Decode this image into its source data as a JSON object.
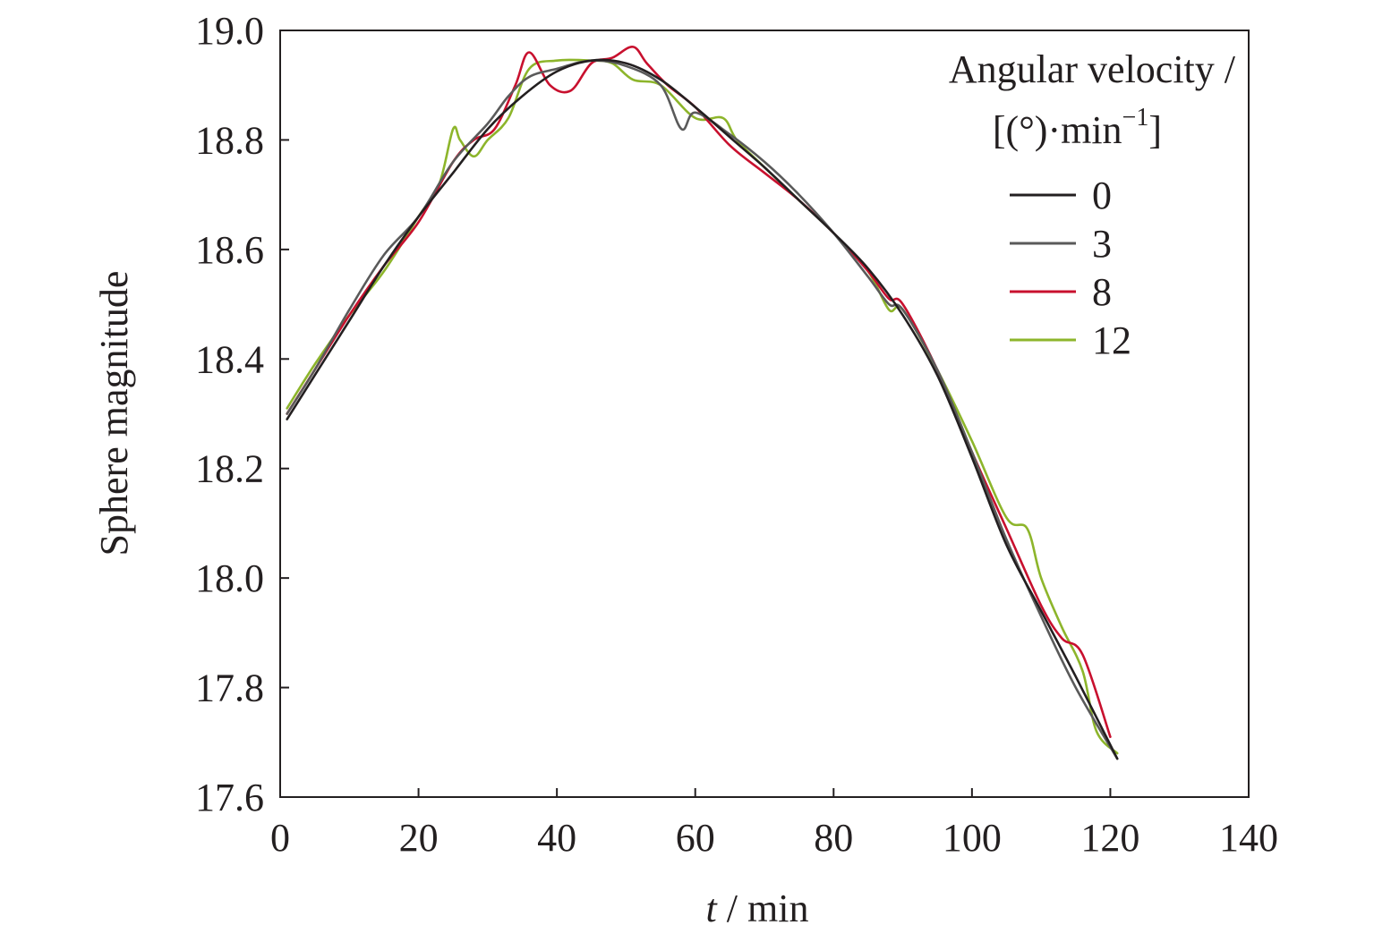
{
  "chart_data": {
    "type": "line",
    "xlabel_var": "t",
    "xlabel_unit": " / min",
    "ylabel": "Sphere magnitude",
    "xlim": [
      0,
      140
    ],
    "ylim": [
      17.6,
      19.0
    ],
    "xticks": [
      "0",
      "20",
      "40",
      "60",
      "80",
      "100",
      "120",
      "140"
    ],
    "yticks": [
      "17.6",
      "17.8",
      "18.0",
      "18.2",
      "18.4",
      "18.6",
      "18.8",
      "19.0"
    ],
    "legend": {
      "title_line1": "Angular velocity /",
      "title_line2_main": "[(°)·min",
      "title_line2_sup": "−1",
      "title_line2_end": "]",
      "placement": "top-right"
    },
    "series": [
      {
        "name": "0",
        "color": "#231f20",
        "x": [
          1,
          5,
          10,
          15,
          20,
          25,
          30,
          35,
          40,
          45,
          50,
          55,
          60,
          65,
          70,
          75,
          80,
          85,
          90,
          95,
          100,
          105,
          110,
          115,
          121
        ],
        "y": [
          18.29,
          18.37,
          18.47,
          18.57,
          18.66,
          18.74,
          18.82,
          18.88,
          18.925,
          18.945,
          18.94,
          18.91,
          18.86,
          18.805,
          18.75,
          18.69,
          18.63,
          18.565,
          18.48,
          18.37,
          18.22,
          18.06,
          17.94,
          17.82,
          17.67
        ]
      },
      {
        "name": "3",
        "color": "#5a5a5a",
        "x": [
          1,
          5,
          10,
          15,
          20,
          25,
          30,
          33,
          36,
          40,
          45,
          50,
          55,
          58,
          60,
          65,
          70,
          75,
          80,
          85,
          88,
          90,
          95,
          100,
          105,
          110,
          115,
          121
        ],
        "y": [
          18.3,
          18.38,
          18.49,
          18.59,
          18.66,
          18.76,
          18.83,
          18.88,
          18.915,
          18.93,
          18.945,
          18.935,
          18.9,
          18.82,
          18.85,
          18.81,
          18.76,
          18.7,
          18.63,
          18.55,
          18.5,
          18.49,
          18.38,
          18.23,
          18.07,
          17.93,
          17.8,
          17.67
        ]
      },
      {
        "name": "8",
        "color": "#c8102e",
        "x": [
          1,
          5,
          10,
          15,
          20,
          25,
          28,
          31,
          34,
          36,
          39,
          42,
          45,
          48,
          51,
          53,
          56,
          60,
          65,
          70,
          75,
          80,
          85,
          88,
          90,
          95,
          100,
          105,
          110,
          113,
          116,
          120
        ],
        "y": [
          18.3,
          18.38,
          18.48,
          18.57,
          18.65,
          18.76,
          18.8,
          18.82,
          18.9,
          18.96,
          18.9,
          18.89,
          18.94,
          18.95,
          18.97,
          18.94,
          18.9,
          18.86,
          18.79,
          18.74,
          18.69,
          18.63,
          18.56,
          18.51,
          18.5,
          18.38,
          18.23,
          18.09,
          17.95,
          17.89,
          17.86,
          17.71
        ]
      },
      {
        "name": "12",
        "color": "#8db52b",
        "x": [
          1,
          5,
          10,
          15,
          20,
          23,
          25,
          26,
          28,
          30,
          33,
          36,
          40,
          45,
          48,
          51,
          55,
          60,
          64,
          66,
          70,
          75,
          80,
          85,
          88,
          90,
          95,
          100,
          105,
          108,
          110,
          113,
          116,
          118,
          121
        ],
        "y": [
          18.31,
          18.39,
          18.48,
          18.56,
          18.66,
          18.72,
          18.82,
          18.8,
          18.77,
          18.8,
          18.84,
          18.93,
          18.945,
          18.945,
          18.94,
          18.91,
          18.9,
          18.84,
          18.84,
          18.8,
          18.75,
          18.69,
          18.63,
          18.56,
          18.49,
          18.49,
          18.38,
          18.25,
          18.11,
          18.09,
          18.0,
          17.91,
          17.83,
          17.72,
          17.68
        ]
      }
    ],
    "grid": false
  }
}
